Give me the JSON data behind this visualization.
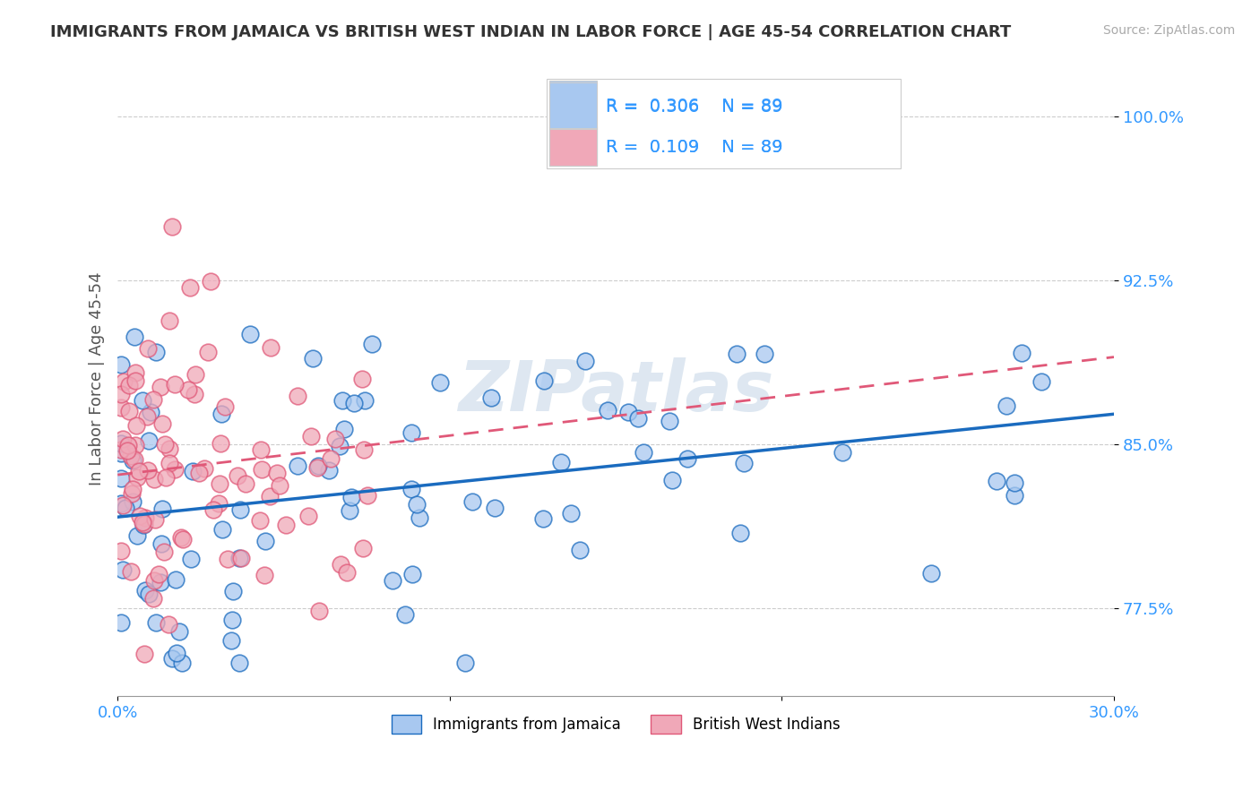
{
  "title": "IMMIGRANTS FROM JAMAICA VS BRITISH WEST INDIAN IN LABOR FORCE | AGE 45-54 CORRELATION CHART",
  "source": "Source: ZipAtlas.com",
  "ylabel": "In Labor Force | Age 45-54",
  "legend_label1": "Immigrants from Jamaica",
  "legend_label2": "British West Indians",
  "R1": 0.306,
  "N1": 89,
  "R2": 0.109,
  "N2": 89,
  "xlim": [
    0.0,
    0.3
  ],
  "ylim": [
    0.735,
    1.025
  ],
  "ytick_values": [
    0.775,
    0.85,
    0.925,
    1.0
  ],
  "ytick_labels": [
    "77.5%",
    "85.0%",
    "92.5%",
    "100.0%"
  ],
  "color_blue": "#a8c8f0",
  "color_blue_line": "#1a6bbf",
  "color_pink": "#f0a8b8",
  "color_pink_line": "#e05878",
  "background_color": "#ffffff",
  "watermark": "ZIPatlas",
  "watermark_color": "#c8d8e8"
}
